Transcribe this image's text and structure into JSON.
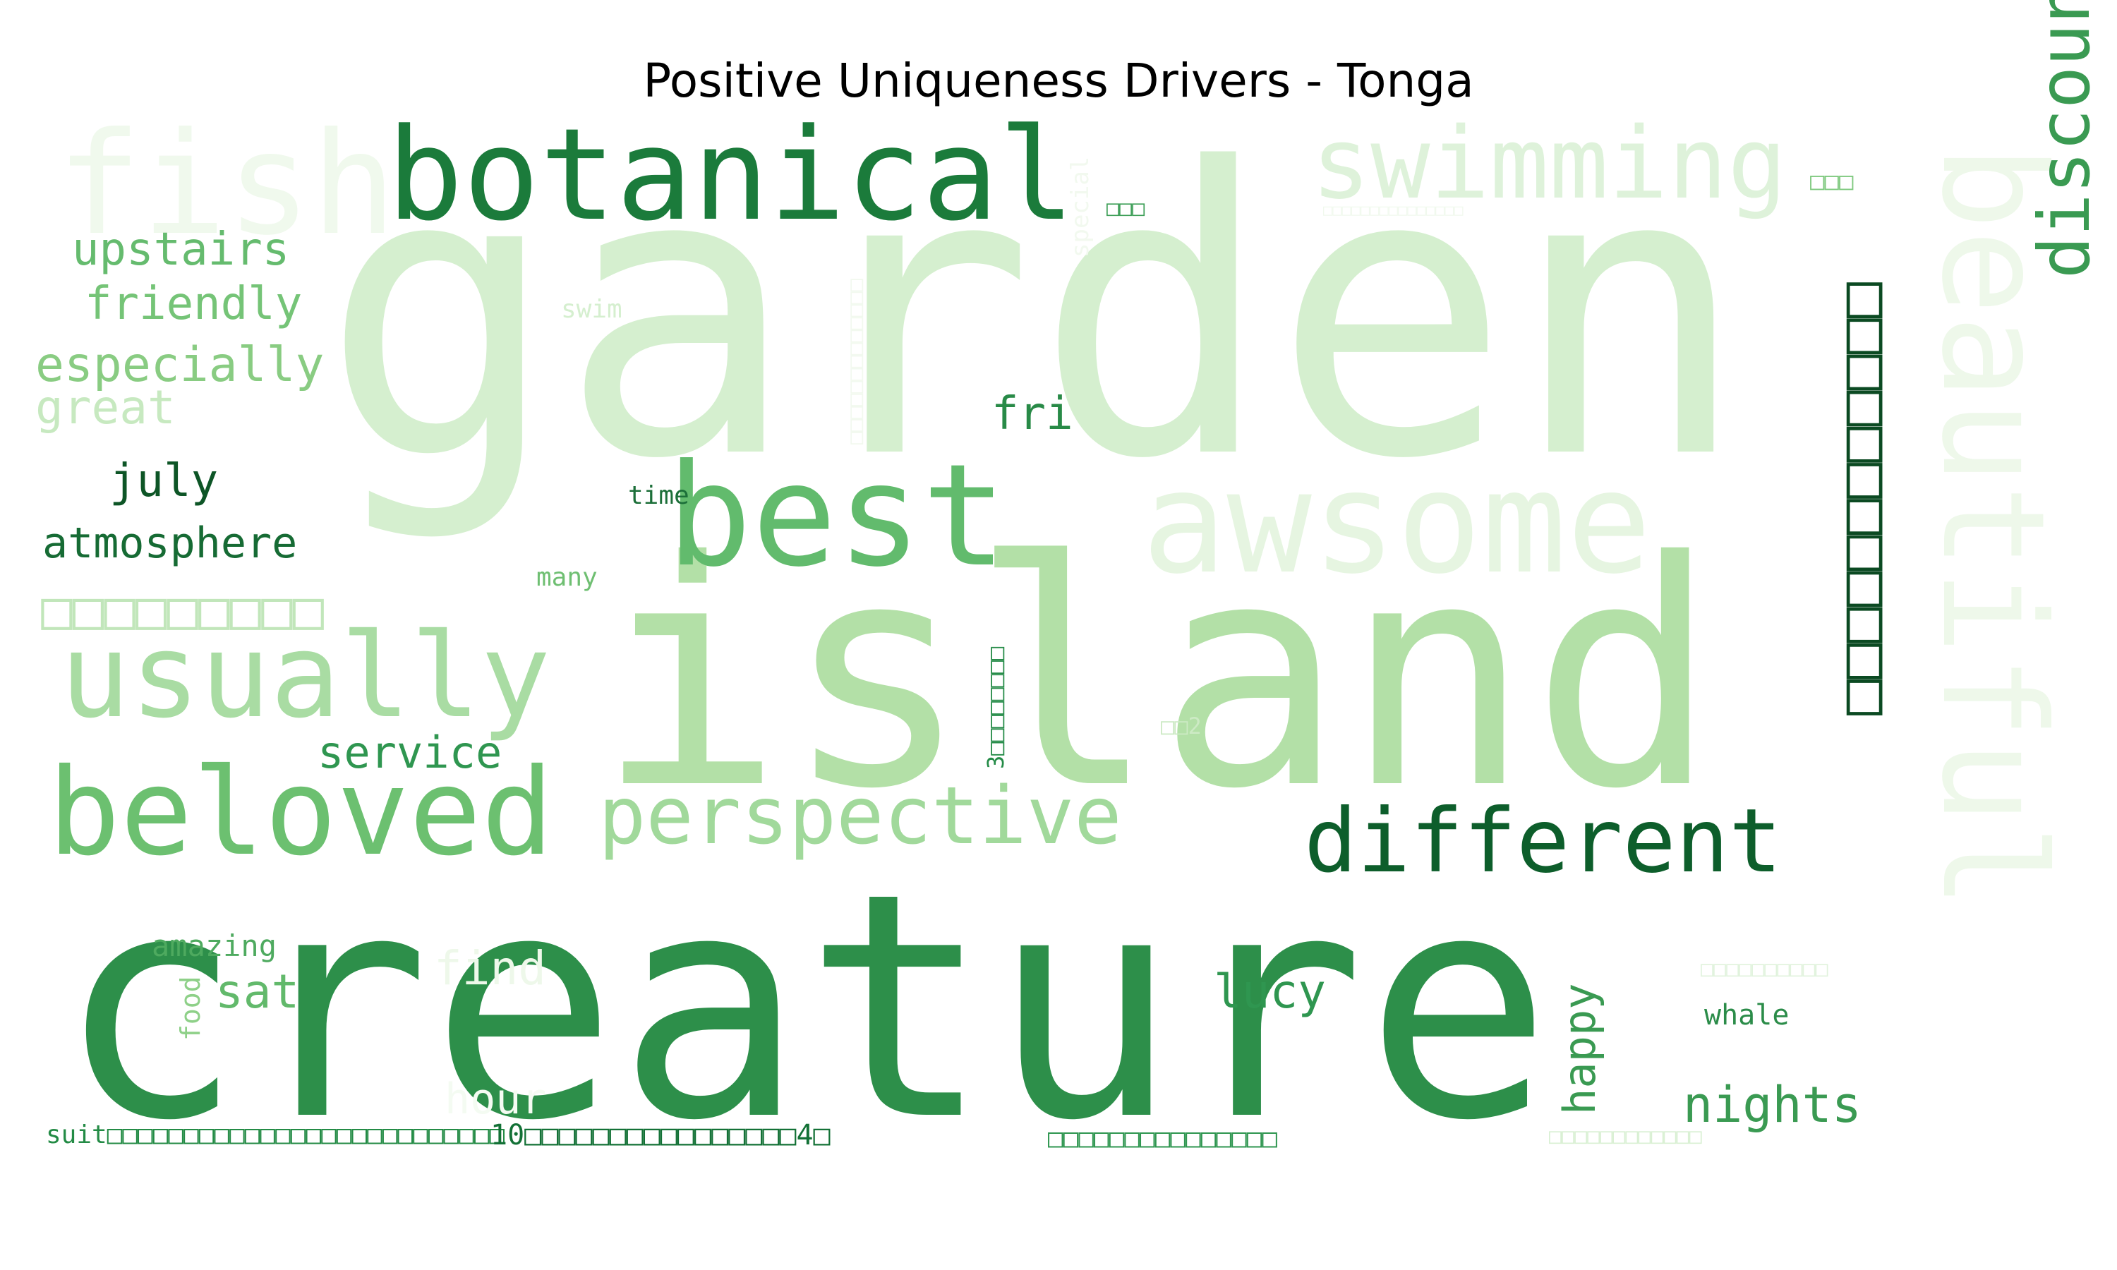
{
  "title": "Positive Uniqueness Drivers - Tonga",
  "colormap": "Greens",
  "words": [
    {
      "text": "garden",
      "color": "#d5efcf"
    },
    {
      "text": "creature",
      "color": "#2d8f4a"
    },
    {
      "text": "island",
      "color": "#b3e0a7"
    },
    {
      "text": "botanical",
      "color": "#1b7b3b"
    },
    {
      "text": "fish",
      "color": "#f0f9ed"
    },
    {
      "text": "swimming",
      "color": "#def2da"
    },
    {
      "text": "beautiful",
      "color": "#eef8ea"
    },
    {
      "text": "awsome",
      "color": "#e6f5e1"
    },
    {
      "text": "best",
      "color": "#62bb6d"
    },
    {
      "text": "usually",
      "color": "#a9dca3"
    },
    {
      "text": "beloved",
      "color": "#6cc070"
    },
    {
      "text": "perspective",
      "color": "#a1d99b"
    },
    {
      "text": "different",
      "color": "#0d5e2b"
    },
    {
      "text": "discount□□□",
      "color": "#3a9a52"
    },
    {
      "text": "□□□□□□□□□□□□",
      "color": "#0b4a22"
    },
    {
      "text": "upstairs",
      "color": "#65bb6e"
    },
    {
      "text": "friendly",
      "color": "#75c477"
    },
    {
      "text": "especially",
      "color": "#89cc82"
    },
    {
      "text": "great",
      "color": "#c7e9c0"
    },
    {
      "text": "july",
      "color": "#0d5526"
    },
    {
      "text": "atmosphere",
      "color": "#166b34"
    },
    {
      "text": "□□□□□□□□□",
      "color": "#c1e6ba"
    },
    {
      "text": "service",
      "color": "#2f9650"
    },
    {
      "text": "fri",
      "color": "#288a47"
    },
    {
      "text": "swim",
      "color": "#d5efcf"
    },
    {
      "text": "time",
      "color": "#1c6f39"
    },
    {
      "text": "many",
      "color": "#6fbf72"
    },
    {
      "text": "special",
      "color": "#f2f9ef"
    },
    {
      "text": "□□□□□□□□□□□□□",
      "color": "#f2f9ef"
    },
    {
      "text": "3□□□□□□□□",
      "color": "#248b47"
    },
    {
      "text": "□□2",
      "color": "#cceac4"
    },
    {
      "text": "□□□",
      "color": "#3c9e56"
    },
    {
      "text": "□□□",
      "color": "#7fc97f"
    },
    {
      "text": "□□□□□□□□□□□□□□□",
      "color": "#f1f9ee"
    },
    {
      "text": "amazing",
      "color": "#4eaa5f"
    },
    {
      "text": "food",
      "color": "#8ed088"
    },
    {
      "text": "sat",
      "color": "#62b96b"
    },
    {
      "text": "find",
      "color": "#eef8ea"
    },
    {
      "text": "hour",
      "color": "#f4fbf2"
    },
    {
      "text": "lucy",
      "color": "#2f9650"
    },
    {
      "text": "happy",
      "color": "#3a9a52"
    },
    {
      "text": "whale",
      "color": "#2b8c49"
    },
    {
      "text": "nights",
      "color": "#3a9a52"
    },
    {
      "text": "□□□□□□□□□□",
      "color": "#e1f3dd"
    },
    {
      "text": "suit□□□□□□□□□□□□□□□□□□□□□□□□□□",
      "color": "#238b45"
    },
    {
      "text": "10□□□□□□□□□□□□□□□□4□",
      "color": "#137136"
    },
    {
      "text": "□□□□□□□□□□□□□□□",
      "color": "#2f9650"
    },
    {
      "text": "□□□□□□□□□□□□",
      "color": "#d9f0d3"
    }
  ]
}
